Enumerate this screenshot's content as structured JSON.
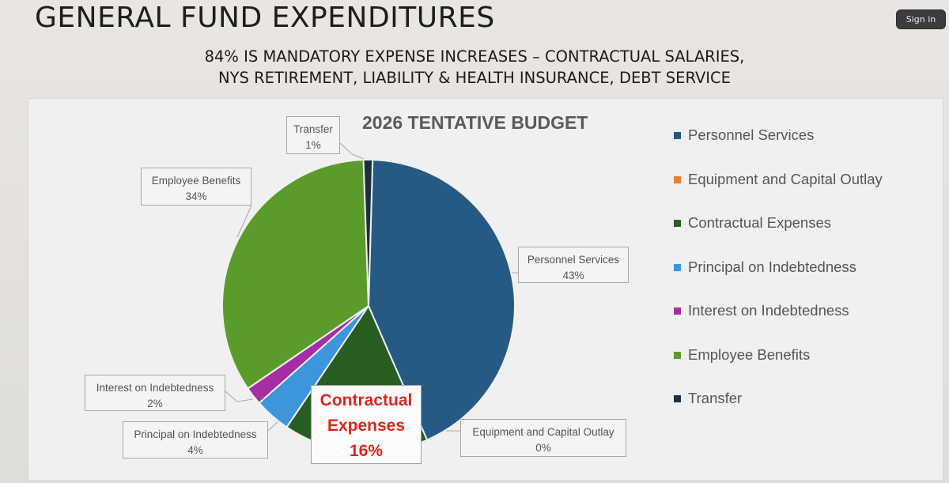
{
  "slide": {
    "title": "GENERAL FUND EXPENDITURES",
    "subtitle_line1": "84% IS MANDATORY EXPENSE INCREASES – CONTRACTUAL SALARIES,",
    "subtitle_line2": "NYS RETIREMENT, LIABILITY & HEALTH INSURANCE, DEBT SERVICE",
    "signin_label": "Sign in"
  },
  "chart_data": {
    "type": "pie",
    "title": "2026 TENTATIVE BUDGET",
    "legend_position": "right",
    "slices": [
      {
        "name": "Personnel Services",
        "value": 43,
        "label_value": "43%",
        "color": "#265a85"
      },
      {
        "name": "Equipment and Capital Outlay",
        "value": 0,
        "label_value": "0%",
        "color": "#ed7d31"
      },
      {
        "name": "Contractual Expenses",
        "value": 16,
        "label_value": "16%",
        "color": "#265e21"
      },
      {
        "name": "Principal on Indebtedness",
        "value": 4,
        "label_value": "4%",
        "color": "#3d95dc"
      },
      {
        "name": "Interest on Indebtedness",
        "value": 2,
        "label_value": "2%",
        "color": "#a52ea5"
      },
      {
        "name": "Employee Benefits",
        "value": 34,
        "label_value": "34%",
        "color": "#5a9c2c"
      },
      {
        "name": "Transfer",
        "value": 1,
        "label_value": "1%",
        "color": "#1c2f40"
      }
    ],
    "highlight": {
      "line1": "Contractual",
      "line2": "Expenses",
      "value": "16%",
      "color": "#d8271d"
    }
  }
}
